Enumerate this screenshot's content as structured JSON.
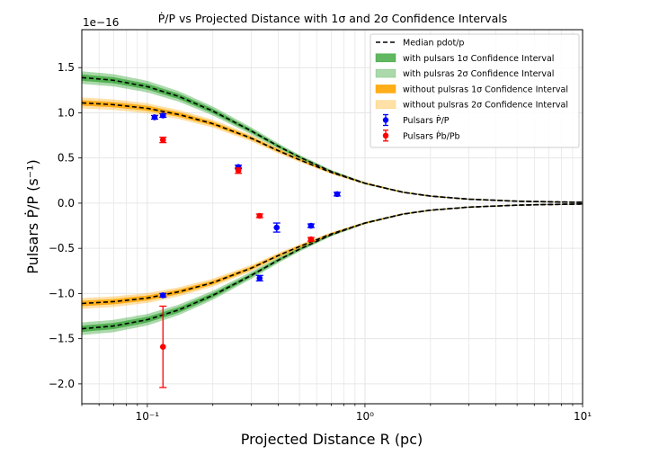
{
  "chart_data": {
    "type": "line",
    "title": "Ṗ/P vs Projected Distance with 1σ and 2σ Confidence Intervals",
    "xlabel": "Projected Distance R (pc)",
    "ylabel": "Pulsars Ṗ/P (s⁻¹)",
    "y_offset_label": "1e−16",
    "x_scale": "log",
    "xlim": [
      0.05,
      10
    ],
    "ylim": [
      -2.22,
      1.92
    ],
    "grid": true,
    "legend_position": "upper right",
    "x_ticks": [
      {
        "value": 0.1,
        "label": "10⁻¹"
      },
      {
        "value": 1,
        "label": "10⁰"
      },
      {
        "value": 10,
        "label": "10¹"
      }
    ],
    "y_ticks": [
      {
        "value": 1.5,
        "label": "1.5"
      },
      {
        "value": 1.0,
        "label": "1.0"
      },
      {
        "value": 0.5,
        "label": "0.5"
      },
      {
        "value": 0.0,
        "label": "0.0"
      },
      {
        "value": -0.5,
        "label": "−0.5"
      },
      {
        "value": -1.0,
        "label": "−1.0"
      },
      {
        "value": -1.5,
        "label": "−1.5"
      },
      {
        "value": -2.0,
        "label": "−2.0"
      }
    ],
    "median_curve": {
      "name": "Median pdot/p",
      "x": [
        0.05,
        0.07,
        0.1,
        0.14,
        0.2,
        0.3,
        0.4,
        0.5,
        0.7,
        1.0,
        1.5,
        2.0,
        3.0,
        5.0,
        7.0,
        10.0
      ],
      "with_pulsars": [
        1.39,
        1.36,
        1.29,
        1.18,
        1.02,
        0.8,
        0.63,
        0.51,
        0.35,
        0.22,
        0.12,
        0.078,
        0.044,
        0.022,
        0.015,
        0.009
      ],
      "without_pulsars": [
        1.11,
        1.09,
        1.05,
        0.98,
        0.88,
        0.72,
        0.58,
        0.48,
        0.34,
        0.22,
        0.12,
        0.078,
        0.044,
        0.022,
        0.015,
        0.009
      ]
    },
    "bands": [
      {
        "name": "with pulsars 1σ Confidence Interval",
        "curve": "with_pulsars",
        "half_width": [
          0.035,
          0.034,
          0.032,
          0.03,
          0.026,
          0.02,
          0.016,
          0.013,
          0.009,
          0.006,
          0.004,
          0.003,
          0.002,
          0.001,
          0.001,
          0.001
        ],
        "color": "#2ca02c",
        "opacity": 0.7
      },
      {
        "name": "with pulsras 2σ Confidence Interval",
        "curve": "with_pulsars",
        "half_width": [
          0.07,
          0.068,
          0.064,
          0.058,
          0.05,
          0.04,
          0.032,
          0.026,
          0.018,
          0.012,
          0.008,
          0.006,
          0.004,
          0.002,
          0.002,
          0.001
        ],
        "color": "#2ca02c",
        "opacity": 0.4
      },
      {
        "name": "without pulsras 1σ Confidence Interval",
        "curve": "without_pulsars",
        "half_width": [
          0.03,
          0.029,
          0.028,
          0.026,
          0.022,
          0.018,
          0.015,
          0.012,
          0.009,
          0.006,
          0.004,
          0.003,
          0.002,
          0.001,
          0.001,
          0.001
        ],
        "color": "#ffa500",
        "opacity": 0.85
      },
      {
        "name": "without pulsras 2σ Confidence Interval",
        "curve": "without_pulsars",
        "half_width": [
          0.06,
          0.058,
          0.055,
          0.05,
          0.044,
          0.036,
          0.03,
          0.024,
          0.018,
          0.012,
          0.008,
          0.006,
          0.004,
          0.002,
          0.002,
          0.001
        ],
        "color": "#ffa500",
        "opacity": 0.35
      }
    ],
    "points": [
      {
        "name": "Pulsars Ṗ/P",
        "color": "#0000ff",
        "x": [
          0.108,
          0.118,
          0.118,
          0.262,
          0.328,
          0.393,
          0.565,
          0.745
        ],
        "y": [
          0.95,
          0.97,
          -1.02,
          0.4,
          -0.83,
          -0.27,
          -0.25,
          0.1
        ],
        "yerr": [
          0.02,
          0.02,
          0.02,
          0.02,
          0.03,
          0.05,
          0.02,
          0.02
        ]
      },
      {
        "name": "Pulsars Ṗb/Pb",
        "color": "#ff0000",
        "x": [
          0.118,
          0.262,
          0.328,
          0.565,
          0.118
        ],
        "y": [
          0.7,
          0.36,
          -0.14,
          -0.4,
          -1.59
        ],
        "yerr": [
          0.03,
          0.03,
          0.02,
          0.02,
          0.45
        ]
      }
    ],
    "legend": [
      {
        "label": "Median pdot/p",
        "kind": "dashed-line"
      },
      {
        "label": "with pulsars 1σ Confidence Interval",
        "kind": "patch",
        "color": "#2ca02c",
        "opacity": 0.75
      },
      {
        "label": "with pulsras 2σ Confidence Interval",
        "kind": "patch",
        "color": "#2ca02c",
        "opacity": 0.4
      },
      {
        "label": "without pulsras 1σ Confidence Interval",
        "kind": "patch",
        "color": "#ffa500",
        "opacity": 0.9
      },
      {
        "label": "without pulsras 2σ Confidence Interval",
        "kind": "patch",
        "color": "#ffa500",
        "opacity": 0.35
      },
      {
        "label": "Pulsars Ṗ/P",
        "kind": "errorbar",
        "color": "#0000ff"
      },
      {
        "label": "Pulsars Ṗb/Pb",
        "kind": "errorbar",
        "color": "#ff0000"
      }
    ]
  }
}
